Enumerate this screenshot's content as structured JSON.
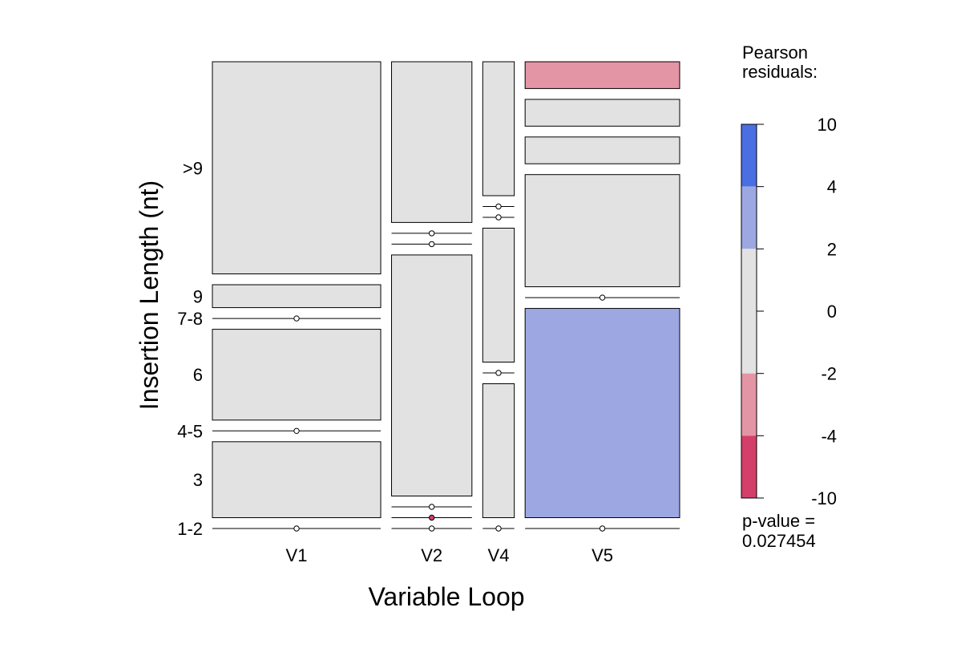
{
  "chart_data": {
    "type": "mosaic",
    "xlabel": "Variable Loop",
    "ylabel": "Insertion Length (nt)",
    "x_categories": [
      "V1",
      "V2",
      "V4",
      "V5"
    ],
    "y_categories": [
      "1-2",
      "3",
      "4-5",
      "6",
      "7-8",
      "9",
      ">9"
    ],
    "columns": [
      {
        "name": "V1",
        "tiles": [
          {
            "level": "1-2",
            "proportion": 0.0,
            "shade": "zero"
          },
          {
            "level": "3",
            "proportion": 0.189,
            "shade": "neutral"
          },
          {
            "level": "4-5",
            "proportion": 0.0,
            "shade": "zero"
          },
          {
            "level": "6",
            "proportion": 0.226,
            "shade": "neutral"
          },
          {
            "level": "7-8",
            "proportion": 0.0,
            "shade": "zero"
          },
          {
            "level": "9",
            "proportion": 0.057,
            "shade": "neutral"
          },
          {
            "level": ">9",
            "proportion": 0.528,
            "shade": "neutral"
          }
        ]
      },
      {
        "name": "V2",
        "tiles": [
          {
            "level": "1-2",
            "proportion": 0.0,
            "shade": "zero"
          },
          {
            "level": "3",
            "proportion": 0.0,
            "shade": "zero-negative"
          },
          {
            "level": "4-5",
            "proportion": 0.0,
            "shade": "zero"
          },
          {
            "level": "6",
            "proportion": 0.6,
            "shade": "neutral"
          },
          {
            "level": "7-8",
            "proportion": 0.0,
            "shade": "zero"
          },
          {
            "level": "9",
            "proportion": 0.0,
            "shade": "zero"
          },
          {
            "level": ">9",
            "proportion": 0.4,
            "shade": "neutral"
          }
        ]
      },
      {
        "name": "V4",
        "tiles": [
          {
            "level": "1-2",
            "proportion": 0.0,
            "shade": "zero"
          },
          {
            "level": "3",
            "proportion": 0.333,
            "shade": "neutral"
          },
          {
            "level": "4-5",
            "proportion": 0.0,
            "shade": "zero"
          },
          {
            "level": "6",
            "proportion": 0.333,
            "shade": "neutral"
          },
          {
            "level": "7-8",
            "proportion": 0.0,
            "shade": "zero"
          },
          {
            "level": "9",
            "proportion": 0.0,
            "shade": "zero"
          },
          {
            "level": ">9",
            "proportion": 0.333,
            "shade": "neutral"
          }
        ]
      },
      {
        "name": "V5",
        "tiles": [
          {
            "level": "1-2",
            "proportion": 0.0,
            "shade": "zero"
          },
          {
            "level": "3",
            "proportion": 0.5,
            "shade": "positive"
          },
          {
            "level": "4-5",
            "proportion": 0.0,
            "shade": "zero"
          },
          {
            "level": "6",
            "proportion": 0.268,
            "shade": "neutral"
          },
          {
            "level": "7-8",
            "proportion": 0.064,
            "shade": "neutral"
          },
          {
            "level": "9",
            "proportion": 0.064,
            "shade": "neutral"
          },
          {
            "level": ">9",
            "proportion": 0.064,
            "shade": "negative"
          }
        ]
      }
    ],
    "column_weights": [
      0.379,
      0.181,
      0.071,
      0.348
    ],
    "colors": {
      "strong_positive": "#4a6fe3",
      "positive": "#9da8e2",
      "neutral": "#e2e2e2",
      "negative": "#e495a5",
      "strong_negative": "#d33f6a"
    },
    "legend": {
      "title_line1": "Pearson",
      "title_line2": "residuals:",
      "breaks": [
        10,
        4,
        2,
        0,
        -2,
        -4,
        -10
      ],
      "break_labels": [
        "10",
        "4",
        "2",
        "0",
        "-2",
        "-4",
        "-10"
      ],
      "bands": [
        {
          "from": 4,
          "to": 10,
          "color": "#4a6fe3"
        },
        {
          "from": 2,
          "to": 4,
          "color": "#9da8e2"
        },
        {
          "from": -2,
          "to": 2,
          "color": "#e2e2e2"
        },
        {
          "from": -4,
          "to": -2,
          "color": "#e495a5"
        },
        {
          "from": -10,
          "to": -4,
          "color": "#d33f6a"
        }
      ],
      "pvalue_line1": "p-value =",
      "pvalue_line2": "0.027454"
    }
  }
}
